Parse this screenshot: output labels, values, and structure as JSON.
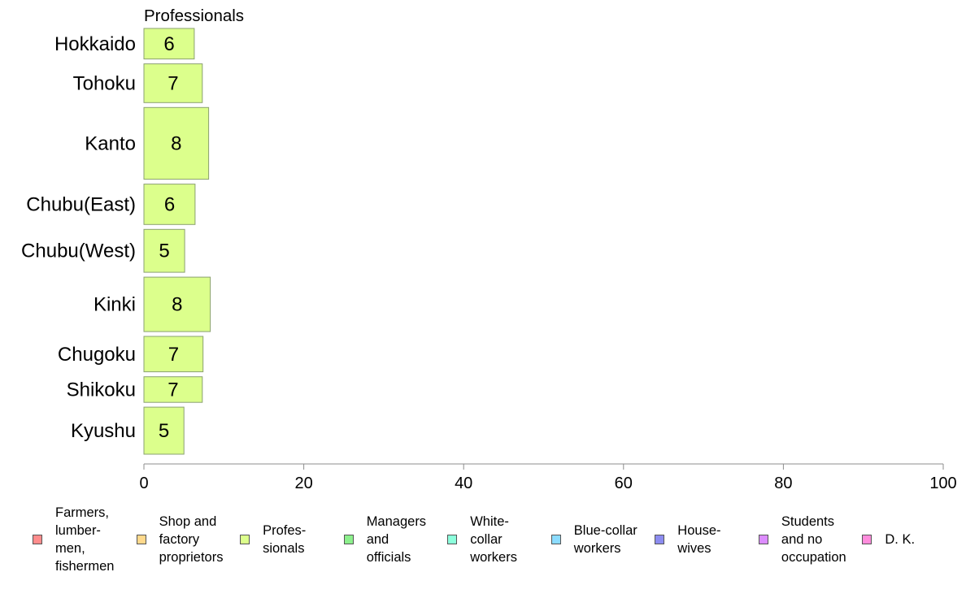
{
  "chart_data": {
    "type": "bar",
    "orientation": "horizontal",
    "title": "Professionals",
    "categories": [
      "Hokkaido",
      "Tohoku",
      "Kanto",
      "Chubu(East)",
      "Chubu(West)",
      "Kinki",
      "Chugoku",
      "Shikoku",
      "Kyushu"
    ],
    "values": [
      6,
      7,
      8,
      6,
      5,
      8,
      7,
      7,
      5
    ],
    "bar_values": [
      6.3,
      7.3,
      8.1,
      6.4,
      5.1,
      8.3,
      7.4,
      7.3,
      5.0
    ],
    "category_weights": [
      37,
      47,
      87,
      49,
      52,
      66,
      43,
      31,
      57
    ],
    "xlim": [
      0,
      100
    ],
    "xticks": [
      0,
      20,
      40,
      60,
      80,
      100
    ],
    "grid": false,
    "bar_color": "#dcff8c",
    "legend_position": "bottom",
    "legend": [
      {
        "label": "Farmers,\nlumber-\nmen,\nfishermen",
        "color": "#ff8c8c"
      },
      {
        "label": "Shop and\nfactory\nproprietors",
        "color": "#ffd98c"
      },
      {
        "label": "Profes-\nsionals",
        "color": "#dcff8c"
      },
      {
        "label": "Managers\nand\nofficials",
        "color": "#8cf08c"
      },
      {
        "label": "White-\ncollar\nworkers",
        "color": "#8cffdc"
      },
      {
        "label": "Blue-collar\nworkers",
        "color": "#8cdcff"
      },
      {
        "label": "House-\nwives",
        "color": "#8c8cf0"
      },
      {
        "label": "Students\nand no\noccupation",
        "color": "#dc8cff"
      },
      {
        "label": "D. K.",
        "color": "#ff8cdc"
      }
    ]
  }
}
